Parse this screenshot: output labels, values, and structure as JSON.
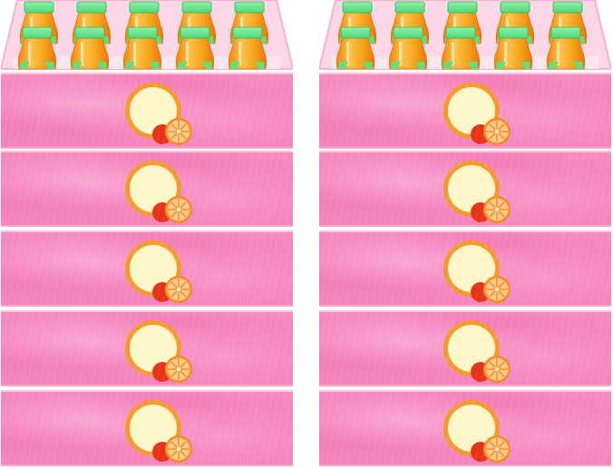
{
  "scene": {
    "crates": [
      {
        "id": "left",
        "bottle_rows": 2,
        "bottles_per_row": 5,
        "label_count": 5
      },
      {
        "id": "right",
        "bottle_rows": 2,
        "bottles_per_row": 5,
        "label_count": 5
      }
    ],
    "colors": {
      "band_pink": "#f27ab6",
      "band_edge": "#f7a5c8",
      "juice_orange": "#f6a21a",
      "cap_green": "#4fd878",
      "label_ring": "#f59a2a",
      "label_fill": "#fdf6c8",
      "orange_slice": "#f48a1c",
      "red_fruit": "#e8321a"
    },
    "icons": [
      "juice-bottle-icon",
      "orange-slice-icon",
      "label-circle-icon"
    ]
  }
}
